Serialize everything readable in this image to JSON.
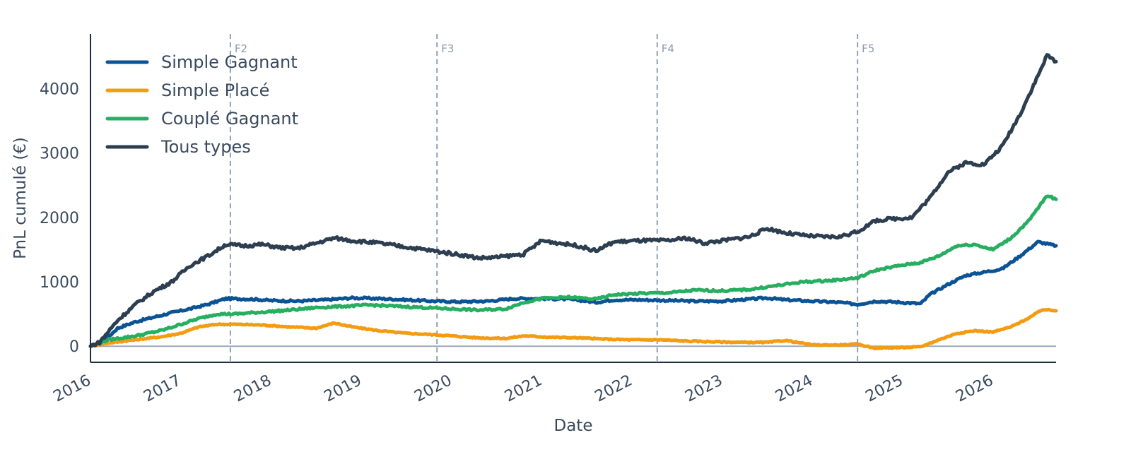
{
  "chart_data": {
    "type": "line",
    "xlabel": "Date",
    "ylabel": "PnL cumulé (€)",
    "xlim": [
      2016.0,
      2026.7
    ],
    "ylim": [
      -250,
      4850
    ],
    "x_ticks": [
      "2016",
      "2017",
      "2018",
      "2019",
      "2020",
      "2021",
      "2022",
      "2023",
      "2024",
      "2025",
      "2026"
    ],
    "y_ticks": [
      "0",
      "1000",
      "2000",
      "3000",
      "4000"
    ],
    "zero_line": true,
    "grid": false,
    "legend_position": "top-left",
    "vertical_lines": [
      {
        "label": "F2",
        "x": 2017.55
      },
      {
        "label": "F3",
        "x": 2019.84
      },
      {
        "label": "F4",
        "x": 2022.28
      },
      {
        "label": "F5",
        "x": 2024.5
      }
    ],
    "series": [
      {
        "name": "Simple Gagnant",
        "color": "#0b5394",
        "points": [
          [
            2016.0,
            0
          ],
          [
            2016.15,
            80
          ],
          [
            2016.3,
            280
          ],
          [
            2016.5,
            380
          ],
          [
            2016.7,
            450
          ],
          [
            2016.9,
            520
          ],
          [
            2017.1,
            580
          ],
          [
            2017.3,
            650
          ],
          [
            2017.5,
            740
          ],
          [
            2017.8,
            730
          ],
          [
            2018.0,
            710
          ],
          [
            2018.3,
            700
          ],
          [
            2018.6,
            720
          ],
          [
            2018.9,
            750
          ],
          [
            2019.2,
            740
          ],
          [
            2019.5,
            720
          ],
          [
            2019.8,
            700
          ],
          [
            2020.1,
            690
          ],
          [
            2020.4,
            700
          ],
          [
            2020.7,
            740
          ],
          [
            2021.0,
            740
          ],
          [
            2021.3,
            730
          ],
          [
            2021.5,
            700
          ],
          [
            2021.6,
            680
          ],
          [
            2021.8,
            720
          ],
          [
            2022.1,
            720
          ],
          [
            2022.4,
            710
          ],
          [
            2022.7,
            700
          ],
          [
            2023.0,
            700
          ],
          [
            2023.3,
            730
          ],
          [
            2023.5,
            750
          ],
          [
            2023.7,
            720
          ],
          [
            2024.0,
            700
          ],
          [
            2024.3,
            680
          ],
          [
            2024.5,
            650
          ],
          [
            2024.7,
            700
          ],
          [
            2025.0,
            680
          ],
          [
            2025.2,
            660
          ],
          [
            2025.3,
            800
          ],
          [
            2025.5,
            960
          ],
          [
            2025.7,
            1100
          ],
          [
            2025.9,
            1150
          ],
          [
            2026.1,
            1200
          ],
          [
            2026.3,
            1400
          ],
          [
            2026.5,
            1620
          ],
          [
            2026.7,
            1560
          ]
        ]
      },
      {
        "name": "Simple Placé",
        "color": "#f39c12",
        "points": [
          [
            2016.0,
            0
          ],
          [
            2016.2,
            50
          ],
          [
            2016.5,
            100
          ],
          [
            2016.8,
            150
          ],
          [
            2017.0,
            200
          ],
          [
            2017.2,
            300
          ],
          [
            2017.4,
            340
          ],
          [
            2017.6,
            340
          ],
          [
            2017.9,
            330
          ],
          [
            2018.2,
            300
          ],
          [
            2018.5,
            280
          ],
          [
            2018.7,
            360
          ],
          [
            2018.9,
            300
          ],
          [
            2019.2,
            240
          ],
          [
            2019.5,
            200
          ],
          [
            2019.8,
            180
          ],
          [
            2020.0,
            160
          ],
          [
            2020.3,
            130
          ],
          [
            2020.6,
            120
          ],
          [
            2020.8,
            160
          ],
          [
            2021.1,
            140
          ],
          [
            2021.4,
            130
          ],
          [
            2021.7,
            110
          ],
          [
            2022.0,
            100
          ],
          [
            2022.3,
            100
          ],
          [
            2022.6,
            80
          ],
          [
            2022.9,
            70
          ],
          [
            2023.2,
            60
          ],
          [
            2023.5,
            60
          ],
          [
            2023.7,
            90
          ],
          [
            2024.0,
            20
          ],
          [
            2024.3,
            20
          ],
          [
            2024.5,
            30
          ],
          [
            2024.7,
            -30
          ],
          [
            2025.0,
            -20
          ],
          [
            2025.2,
            -10
          ],
          [
            2025.4,
            100
          ],
          [
            2025.6,
            200
          ],
          [
            2025.8,
            240
          ],
          [
            2026.0,
            220
          ],
          [
            2026.2,
            300
          ],
          [
            2026.4,
            440
          ],
          [
            2026.55,
            570
          ],
          [
            2026.7,
            550
          ]
        ]
      },
      {
        "name": "Couplé Gagnant",
        "color": "#27ae60",
        "points": [
          [
            2016.0,
            0
          ],
          [
            2016.2,
            100
          ],
          [
            2016.5,
            160
          ],
          [
            2016.8,
            250
          ],
          [
            2017.0,
            340
          ],
          [
            2017.2,
            430
          ],
          [
            2017.4,
            500
          ],
          [
            2017.6,
            500
          ],
          [
            2017.9,
            530
          ],
          [
            2018.2,
            560
          ],
          [
            2018.5,
            600
          ],
          [
            2018.8,
            620
          ],
          [
            2019.1,
            640
          ],
          [
            2019.4,
            620
          ],
          [
            2019.7,
            600
          ],
          [
            2020.0,
            580
          ],
          [
            2020.3,
            560
          ],
          [
            2020.6,
            580
          ],
          [
            2020.8,
            680
          ],
          [
            2021.0,
            740
          ],
          [
            2021.3,
            760
          ],
          [
            2021.6,
            730
          ],
          [
            2021.8,
            800
          ],
          [
            2022.1,
            820
          ],
          [
            2022.4,
            830
          ],
          [
            2022.7,
            870
          ],
          [
            2023.0,
            860
          ],
          [
            2023.3,
            880
          ],
          [
            2023.6,
            940
          ],
          [
            2023.9,
            1000
          ],
          [
            2024.2,
            1020
          ],
          [
            2024.5,
            1060
          ],
          [
            2024.7,
            1180
          ],
          [
            2025.0,
            1260
          ],
          [
            2025.2,
            1300
          ],
          [
            2025.4,
            1400
          ],
          [
            2025.6,
            1560
          ],
          [
            2025.8,
            1580
          ],
          [
            2026.0,
            1500
          ],
          [
            2026.2,
            1680
          ],
          [
            2026.4,
            1950
          ],
          [
            2026.6,
            2340
          ],
          [
            2026.7,
            2280
          ]
        ]
      },
      {
        "name": "Tous types",
        "color": "#2c3e50",
        "points": [
          [
            2016.0,
            0
          ],
          [
            2016.1,
            60
          ],
          [
            2016.3,
            400
          ],
          [
            2016.5,
            650
          ],
          [
            2016.7,
            850
          ],
          [
            2016.9,
            1000
          ],
          [
            2017.1,
            1250
          ],
          [
            2017.3,
            1400
          ],
          [
            2017.5,
            1580
          ],
          [
            2017.7,
            1560
          ],
          [
            2017.9,
            1580
          ],
          [
            2018.1,
            1530
          ],
          [
            2018.3,
            1520
          ],
          [
            2018.5,
            1600
          ],
          [
            2018.7,
            1680
          ],
          [
            2018.9,
            1640
          ],
          [
            2019.2,
            1600
          ],
          [
            2019.5,
            1540
          ],
          [
            2019.8,
            1480
          ],
          [
            2020.1,
            1420
          ],
          [
            2020.3,
            1370
          ],
          [
            2020.5,
            1380
          ],
          [
            2020.8,
            1430
          ],
          [
            2021.0,
            1640
          ],
          [
            2021.2,
            1600
          ],
          [
            2021.4,
            1560
          ],
          [
            2021.6,
            1480
          ],
          [
            2021.8,
            1620
          ],
          [
            2022.1,
            1640
          ],
          [
            2022.4,
            1640
          ],
          [
            2022.6,
            1680
          ],
          [
            2022.8,
            1600
          ],
          [
            2023.0,
            1640
          ],
          [
            2023.3,
            1700
          ],
          [
            2023.5,
            1830
          ],
          [
            2023.7,
            1760
          ],
          [
            2023.9,
            1720
          ],
          [
            2024.1,
            1700
          ],
          [
            2024.3,
            1700
          ],
          [
            2024.5,
            1780
          ],
          [
            2024.7,
            1950
          ],
          [
            2024.9,
            1980
          ],
          [
            2025.1,
            2000
          ],
          [
            2025.3,
            2300
          ],
          [
            2025.5,
            2700
          ],
          [
            2025.7,
            2850
          ],
          [
            2025.9,
            2820
          ],
          [
            2026.1,
            3100
          ],
          [
            2026.3,
            3600
          ],
          [
            2026.5,
            4200
          ],
          [
            2026.6,
            4520
          ],
          [
            2026.7,
            4420
          ]
        ]
      }
    ]
  }
}
